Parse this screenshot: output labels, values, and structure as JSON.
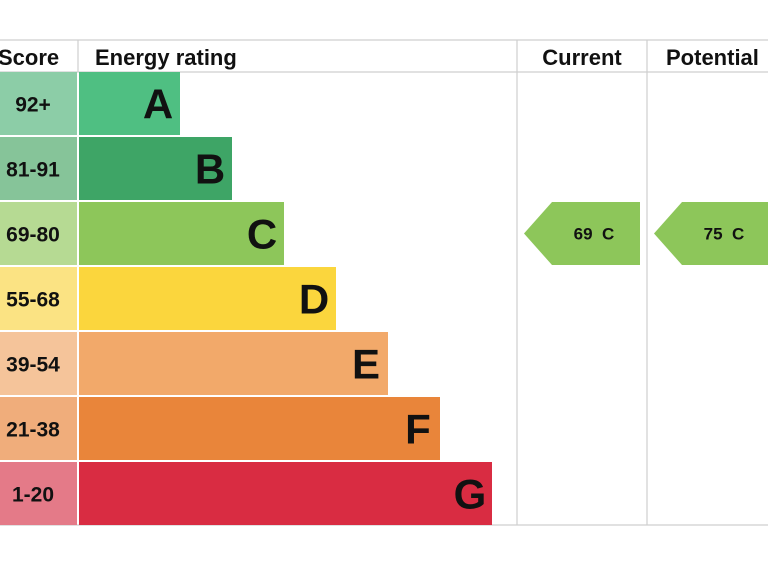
{
  "headers": {
    "score": "Score",
    "energy_rating": "Energy rating",
    "current": "Current",
    "potential": "Potential"
  },
  "chart_data": {
    "type": "bar",
    "title": "",
    "bands": [
      {
        "letter": "A",
        "score": "92+",
        "bar_color": "#4fbf82",
        "score_color": "#8ccda7"
      },
      {
        "letter": "B",
        "score": "81-91",
        "bar_color": "#3ea566",
        "score_color": "#86c499"
      },
      {
        "letter": "C",
        "score": "69-80",
        "bar_color": "#8dc65a",
        "score_color": "#b6da93"
      },
      {
        "letter": "D",
        "score": "55-68",
        "bar_color": "#fbd63d",
        "score_color": "#fbe383"
      },
      {
        "letter": "E",
        "score": "39-54",
        "bar_color": "#f2a96a",
        "score_color": "#f5c49a"
      },
      {
        "letter": "F",
        "score": "21-38",
        "bar_color": "#e9853a",
        "score_color": "#f0ad7b"
      },
      {
        "letter": "G",
        "score": "1-20",
        "bar_color": "#d92c42",
        "score_color": "#e47a88"
      }
    ],
    "current": {
      "value": 69,
      "band": "C",
      "label": "69  C",
      "color": "#8dc65a"
    },
    "potential": {
      "value": 75,
      "band": "C",
      "label": "75  C",
      "color": "#8dc65a"
    }
  }
}
